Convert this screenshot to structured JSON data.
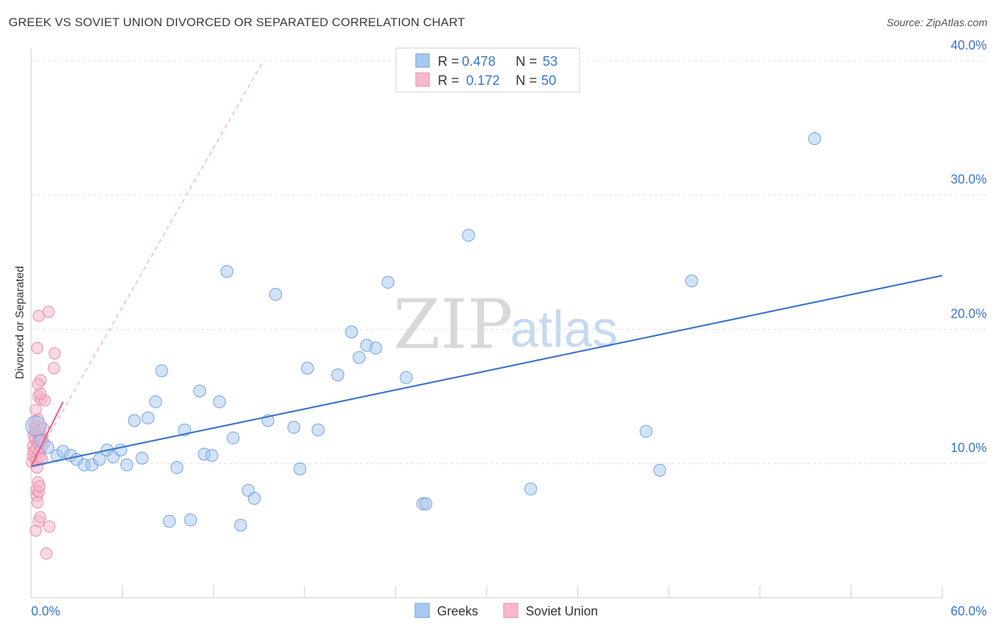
{
  "header": {
    "title": "GREEK VS SOVIET UNION DIVORCED OR SEPARATED CORRELATION CHART",
    "source": "Source: ZipAtlas.com"
  },
  "watermark": {
    "zip": "ZIP",
    "atlas": "atlas"
  },
  "legend_top": [
    {
      "r_label": "R = ",
      "r_value": "0.478",
      "n_label": "N = ",
      "n_value": "53",
      "color": "#a8c8f0"
    },
    {
      "r_label": "R = ",
      "r_value": "0.172",
      "n_label": "N = ",
      "n_value": "50",
      "color": "#f7b8cb"
    }
  ],
  "legend_bottom": [
    {
      "label": "Greeks",
      "color": "#a8c8f0"
    },
    {
      "label": "Soviet Union",
      "color": "#f7b8cb"
    }
  ],
  "chart_data": {
    "type": "scatter",
    "title": "GREEK VS SOVIET UNION DIVORCED OR SEPARATED CORRELATION CHART",
    "xlabel": "",
    "ylabel": "Divorced or Separated",
    "xlim": [
      0,
      60
    ],
    "ylim": [
      0,
      42
    ],
    "x_tick_labels": [
      {
        "value": 0,
        "label": "0.0%"
      },
      {
        "value": 60,
        "label": "60.0%"
      }
    ],
    "y_tick_labels": [
      {
        "value": 10,
        "label": "10.0%"
      },
      {
        "value": 20,
        "label": "20.0%"
      },
      {
        "value": 30,
        "label": "30.0%"
      },
      {
        "value": 40,
        "label": "40.0%"
      }
    ],
    "series": [
      {
        "name": "Greeks",
        "color": "#3a74c8",
        "fill": "#a8c8f0",
        "R": 0.478,
        "N": 53,
        "trend": {
          "x": [
            0,
            60
          ],
          "y": [
            9.8,
            24.0
          ],
          "style": "solid"
        },
        "points": [
          [
            0.3,
            12.8
          ],
          [
            0.6,
            11.7
          ],
          [
            1.1,
            11.2
          ],
          [
            1.7,
            10.6
          ],
          [
            2.1,
            10.9
          ],
          [
            2.6,
            10.6
          ],
          [
            3.0,
            10.3
          ],
          [
            3.5,
            9.9
          ],
          [
            4.0,
            9.9
          ],
          [
            4.5,
            10.3
          ],
          [
            5.0,
            11.0
          ],
          [
            5.4,
            10.5
          ],
          [
            5.9,
            11.0
          ],
          [
            6.3,
            9.9
          ],
          [
            6.8,
            13.2
          ],
          [
            7.3,
            10.4
          ],
          [
            7.7,
            13.4
          ],
          [
            8.2,
            14.6
          ],
          [
            8.6,
            16.9
          ],
          [
            9.1,
            5.7
          ],
          [
            9.6,
            9.7
          ],
          [
            10.1,
            12.5
          ],
          [
            10.5,
            5.8
          ],
          [
            11.1,
            15.4
          ],
          [
            11.4,
            10.7
          ],
          [
            11.9,
            10.6
          ],
          [
            12.4,
            14.6
          ],
          [
            12.9,
            24.3
          ],
          [
            13.3,
            11.9
          ],
          [
            13.8,
            5.4
          ],
          [
            14.3,
            8.0
          ],
          [
            14.7,
            7.4
          ],
          [
            15.6,
            13.2
          ],
          [
            16.1,
            22.6
          ],
          [
            17.3,
            12.7
          ],
          [
            17.7,
            9.6
          ],
          [
            18.2,
            17.1
          ],
          [
            18.9,
            12.5
          ],
          [
            20.2,
            16.6
          ],
          [
            21.1,
            19.8
          ],
          [
            21.6,
            17.9
          ],
          [
            22.1,
            18.8
          ],
          [
            22.7,
            18.6
          ],
          [
            23.5,
            23.5
          ],
          [
            24.7,
            16.4
          ],
          [
            25.8,
            7.0
          ],
          [
            26.0,
            7.0
          ],
          [
            28.8,
            27.0
          ],
          [
            32.9,
            8.1
          ],
          [
            40.5,
            12.4
          ],
          [
            41.4,
            9.5
          ],
          [
            43.5,
            23.6
          ],
          [
            51.6,
            34.2
          ]
        ]
      },
      {
        "name": "Soviet Union",
        "color": "#e8608a",
        "fill": "#f7b8cb",
        "R": 0.172,
        "N": 50,
        "trend_solid": {
          "x": [
            0,
            2.1
          ],
          "y": [
            9.8,
            14.6
          ],
          "style": "solid"
        },
        "trend_dashed": {
          "x": [
            0,
            15.3
          ],
          "y": [
            9.8,
            40.0
          ],
          "style": "dashed"
        },
        "points": [
          [
            0.05,
            10.1
          ],
          [
            0.1,
            10.6
          ],
          [
            0.12,
            11.3
          ],
          [
            0.15,
            12.1
          ],
          [
            0.18,
            10.9
          ],
          [
            0.2,
            12.7
          ],
          [
            0.22,
            13.0
          ],
          [
            0.25,
            11.8
          ],
          [
            0.27,
            10.4
          ],
          [
            0.3,
            12.4
          ],
          [
            0.33,
            11.1
          ],
          [
            0.35,
            10.2
          ],
          [
            0.38,
            9.7
          ],
          [
            0.4,
            12.8
          ],
          [
            0.42,
            11.6
          ],
          [
            0.45,
            13.3
          ],
          [
            0.48,
            15.0
          ],
          [
            0.5,
            11.4
          ],
          [
            0.52,
            10.8
          ],
          [
            0.55,
            12.3
          ],
          [
            0.58,
            11.9
          ],
          [
            0.6,
            10.5
          ],
          [
            0.62,
            16.2
          ],
          [
            0.65,
            14.8
          ],
          [
            0.68,
            11.2
          ],
          [
            0.7,
            12.0
          ],
          [
            0.72,
            10.3
          ],
          [
            0.75,
            11.7
          ],
          [
            0.8,
            12.6
          ],
          [
            0.85,
            11.5
          ],
          [
            0.35,
            8.0
          ],
          [
            0.38,
            7.6
          ],
          [
            0.42,
            7.1
          ],
          [
            0.45,
            8.6
          ],
          [
            0.5,
            7.9
          ],
          [
            0.55,
            8.3
          ],
          [
            0.3,
            5.0
          ],
          [
            0.5,
            5.7
          ],
          [
            0.6,
            6.0
          ],
          [
            1.2,
            5.3
          ],
          [
            1.0,
            3.3
          ],
          [
            0.4,
            18.6
          ],
          [
            0.5,
            21.0
          ],
          [
            1.15,
            21.3
          ],
          [
            1.55,
            18.2
          ],
          [
            1.5,
            17.1
          ],
          [
            0.45,
            15.9
          ],
          [
            0.9,
            14.7
          ],
          [
            0.6,
            15.2
          ],
          [
            0.3,
            14.0
          ]
        ]
      }
    ]
  }
}
